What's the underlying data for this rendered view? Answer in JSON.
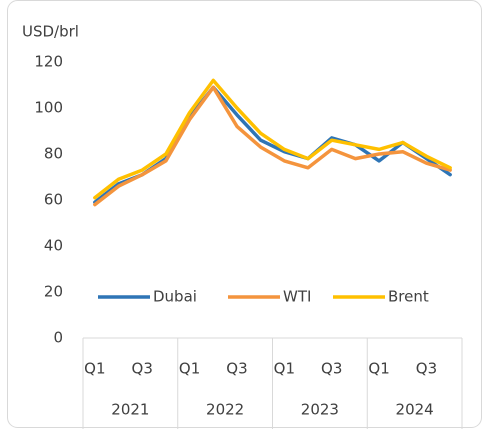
{
  "chart_data": {
    "type": "line",
    "y_axis_label": "USD/brl",
    "categories": [
      "Q1",
      null,
      "Q3",
      null,
      "Q1",
      null,
      "Q3",
      null,
      "Q1",
      null,
      "Q3",
      null,
      "Q1",
      null,
      "Q3",
      null
    ],
    "years": [
      "2021",
      "2022",
      "2023",
      "2024"
    ],
    "series": [
      {
        "name": "Dubai",
        "color": "#2e75b6",
        "values": [
          59,
          67,
          71,
          78,
          96,
          109,
          97,
          86,
          81,
          78,
          87,
          84,
          77,
          85,
          78,
          71
        ]
      },
      {
        "name": "WTI",
        "color": "#f4943d",
        "values": [
          58,
          66,
          71,
          77,
          95,
          109,
          92,
          83,
          77,
          74,
          82,
          78,
          80,
          81,
          76,
          73
        ]
      },
      {
        "name": "Brent",
        "color": "#ffc000",
        "values": [
          61,
          69,
          73,
          80,
          98,
          112,
          100,
          89,
          82,
          78,
          86,
          84,
          82,
          85,
          79,
          74
        ]
      }
    ],
    "ylim": [
      0,
      120
    ],
    "yticks": [
      0,
      20,
      40,
      60,
      80,
      100,
      120
    ],
    "grid": false,
    "legend": "bottom"
  }
}
